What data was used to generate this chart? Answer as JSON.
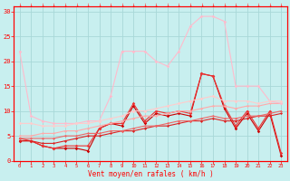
{
  "title": "",
  "xlabel": "Vent moyen/en rafales ( km/h )",
  "background_color": "#c8efef",
  "grid_color": "#a8d8d8",
  "x_values": [
    0,
    1,
    2,
    3,
    4,
    5,
    6,
    7,
    8,
    9,
    10,
    11,
    12,
    13,
    14,
    15,
    16,
    17,
    18,
    19,
    20,
    21,
    22,
    23
  ],
  "ylim": [
    0,
    31
  ],
  "xlim": [
    -0.5,
    23.5
  ],
  "series": [
    {
      "name": "darkred_spiky",
      "color": "#cc0000",
      "lw": 0.8,
      "marker": "D",
      "markersize": 1.8,
      "y": [
        4,
        4,
        3,
        2.5,
        2.5,
        2.5,
        2,
        6.5,
        7.5,
        7,
        11,
        7.5,
        9.5,
        9,
        9.5,
        9,
        17.5,
        17,
        10.5,
        6.5,
        9.5,
        6,
        9.5,
        1
      ]
    },
    {
      "name": "med_red_spiky",
      "color": "#ee3333",
      "lw": 0.8,
      "marker": "D",
      "markersize": 1.8,
      "y": [
        4.5,
        4,
        3,
        2.5,
        3,
        3,
        3,
        6.5,
        7.5,
        7.5,
        11.5,
        8,
        10,
        9.5,
        10,
        9.5,
        17.5,
        17,
        11,
        7,
        10,
        6.5,
        10,
        1.5
      ]
    },
    {
      "name": "linear_dark",
      "color": "#dd2222",
      "lw": 0.8,
      "marker": "D",
      "markersize": 1.5,
      "y": [
        4,
        4,
        3.5,
        3.5,
        4,
        4.5,
        5,
        5,
        5.5,
        6,
        6,
        6.5,
        7,
        7,
        7.5,
        8,
        8,
        8.5,
        8,
        8,
        8.5,
        9,
        9,
        9.5
      ]
    },
    {
      "name": "linear_mid",
      "color": "#ee6666",
      "lw": 0.8,
      "marker": "D",
      "markersize": 1.5,
      "y": [
        4.5,
        4.5,
        4.5,
        4.5,
        5,
        5,
        5.5,
        5.5,
        6,
        6,
        6.5,
        7,
        7,
        7.5,
        8,
        8,
        8.5,
        9,
        8.5,
        8.5,
        9,
        9,
        9.5,
        10
      ]
    },
    {
      "name": "linear_light",
      "color": "#ffaaaa",
      "lw": 0.8,
      "marker": "D",
      "markersize": 1.5,
      "y": [
        5,
        5,
        5.5,
        5.5,
        6,
        6,
        6.5,
        7,
        7.5,
        8,
        8.5,
        9,
        9,
        9.5,
        10,
        10,
        10.5,
        11,
        11,
        10.5,
        11,
        11,
        11.5,
        11.5
      ]
    },
    {
      "name": "pink_large",
      "color": "#ffbbcc",
      "lw": 0.8,
      "marker": "D",
      "markersize": 1.8,
      "y": [
        22,
        9,
        8,
        7.5,
        7.5,
        7.5,
        8,
        8,
        13,
        22,
        22,
        22,
        20,
        19,
        22,
        27,
        29,
        29,
        28,
        15,
        15,
        15,
        12,
        11.5
      ]
    },
    {
      "name": "light_pink_wide",
      "color": "#ffcccc",
      "lw": 0.8,
      "marker": "D",
      "markersize": 1.8,
      "y": [
        7.5,
        7.5,
        7,
        7,
        7,
        7.5,
        7.5,
        8,
        8.5,
        9,
        10,
        10,
        10.5,
        11,
        11.5,
        12,
        12.5,
        13,
        12,
        12,
        12,
        11.5,
        12,
        12
      ]
    }
  ],
  "tick_labels": [
    "0",
    "1",
    "2",
    "3",
    "4",
    "5",
    "6",
    "7",
    "8",
    "9",
    "10",
    "11",
    "12",
    "13",
    "14",
    "15",
    "16",
    "17",
    "18",
    "19",
    "20",
    "21",
    "22",
    "23"
  ],
  "yticks": [
    0,
    5,
    10,
    15,
    20,
    25,
    30
  ]
}
